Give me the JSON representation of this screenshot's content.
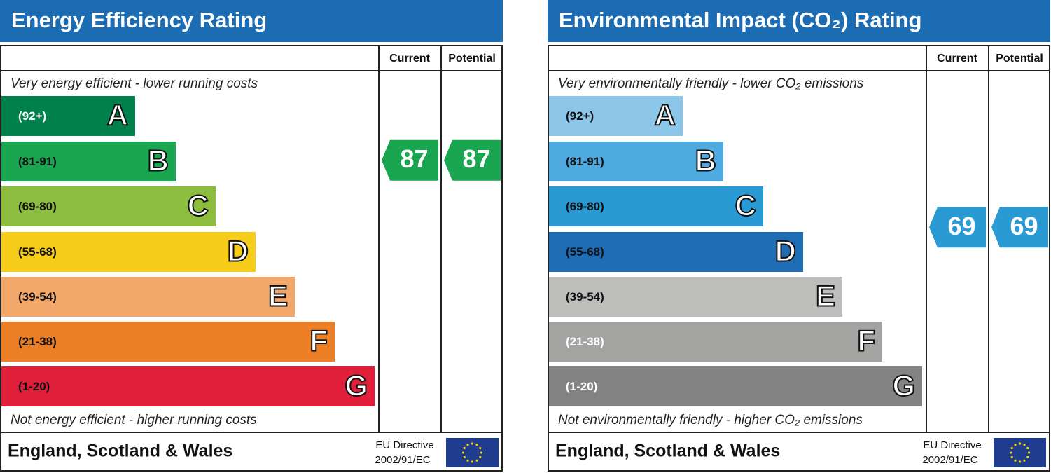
{
  "panels": [
    {
      "title": "Energy Efficiency Rating",
      "columns": [
        "Current",
        "Potential"
      ],
      "top_note": "Very energy efficient - lower running costs",
      "bottom_note": "Not energy efficient - higher running costs",
      "bands": [
        {
          "range": "(92+)",
          "letter": "A",
          "color": "#00804a",
          "text_color": "#ffffff"
        },
        {
          "range": "(81-91)",
          "letter": "B",
          "color": "#1aa550",
          "text_color": "#111111"
        },
        {
          "range": "(69-80)",
          "letter": "C",
          "color": "#8cbd3f",
          "text_color": "#111111"
        },
        {
          "range": "(55-68)",
          "letter": "D",
          "color": "#f6cd1b",
          "text_color": "#111111"
        },
        {
          "range": "(39-54)",
          "letter": "E",
          "color": "#f2a86b",
          "text_color": "#111111"
        },
        {
          "range": "(21-38)",
          "letter": "F",
          "color": "#ec7f26",
          "text_color": "#111111"
        },
        {
          "range": "(1-20)",
          "letter": "G",
          "color": "#e01f3b",
          "text_color": "#111111"
        }
      ],
      "current": 87,
      "potential": 87,
      "footer": "England, Scotland & Wales",
      "directive": [
        "EU Directive",
        "2002/91/EC"
      ]
    },
    {
      "title": "Environmental Impact (CO₂) Rating",
      "columns": [
        "Current",
        "Potential"
      ],
      "top_note": "Very environmentally friendly - lower CO₂ emissions",
      "bottom_note": "Not environmentally friendly - higher CO₂ emissions",
      "bands": [
        {
          "range": "(92+)",
          "letter": "A",
          "color": "#8cc7ea",
          "text_color": "#111111"
        },
        {
          "range": "(81-91)",
          "letter": "B",
          "color": "#4eaadf",
          "text_color": "#111111"
        },
        {
          "range": "(69-80)",
          "letter": "C",
          "color": "#2a9ad4",
          "text_color": "#111111"
        },
        {
          "range": "(55-68)",
          "letter": "D",
          "color": "#1f6eb5",
          "text_color": "#111111"
        },
        {
          "range": "(39-54)",
          "letter": "E",
          "color": "#bdbdbb",
          "text_color": "#111111"
        },
        {
          "range": "(21-38)",
          "letter": "F",
          "color": "#a3a3a1",
          "text_color": "#ffffff"
        },
        {
          "range": "(1-20)",
          "letter": "G",
          "color": "#838383",
          "text_color": "#ffffff"
        }
      ],
      "current": 69,
      "potential": 69,
      "footer": "England, Scotland & Wales",
      "directive": [
        "EU Directive",
        "2002/91/EC"
      ]
    }
  ]
}
